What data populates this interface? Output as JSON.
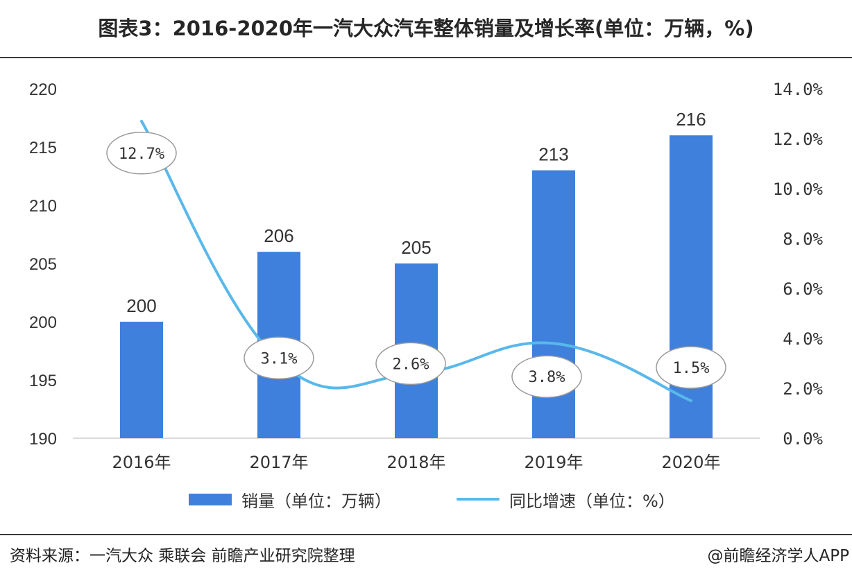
{
  "title": "图表3：2016-2020年一汽大众汽车整体销量及增长率(单位：万辆，%)",
  "source": "资料来源：一汽大众 乘联会 前瞻产业研究院整理",
  "credit": "@前瞻经济学人APP",
  "colors": {
    "bar": "#3f80dc",
    "line": "#59b8ea",
    "axis": "#cfcfcf",
    "text": "#333333"
  },
  "chart_data": {
    "type": "bar",
    "categories": [
      "2016年",
      "2017年",
      "2018年",
      "2019年",
      "2020年"
    ],
    "series": [
      {
        "name": "销量（单位：万辆）",
        "type": "bar",
        "axis": "left",
        "values": [
          200,
          206,
          205,
          213,
          216
        ],
        "labels": [
          "200",
          "206",
          "205",
          "213",
          "216"
        ]
      },
      {
        "name": "同比增速（单位：%）",
        "type": "line",
        "axis": "right",
        "values": [
          12.7,
          3.1,
          2.6,
          3.8,
          1.5
        ],
        "labels": [
          "12.7%",
          "3.1%",
          "2.6%",
          "3.8%",
          "1.5%"
        ]
      }
    ],
    "left_axis": {
      "ylim": [
        190,
        220
      ],
      "ticks": [
        "190",
        "195",
        "200",
        "205",
        "210",
        "215",
        "220"
      ],
      "tick_values": [
        190,
        195,
        200,
        205,
        210,
        215,
        220
      ]
    },
    "right_axis": {
      "ylim": [
        0,
        14
      ],
      "ticks": [
        "0.0%",
        "2.0%",
        "4.0%",
        "6.0%",
        "8.0%",
        "10.0%",
        "12.0%",
        "14.0%"
      ],
      "tick_values": [
        0,
        2,
        4,
        6,
        8,
        10,
        12,
        14
      ]
    },
    "legend": "bottom",
    "grid": false
  }
}
